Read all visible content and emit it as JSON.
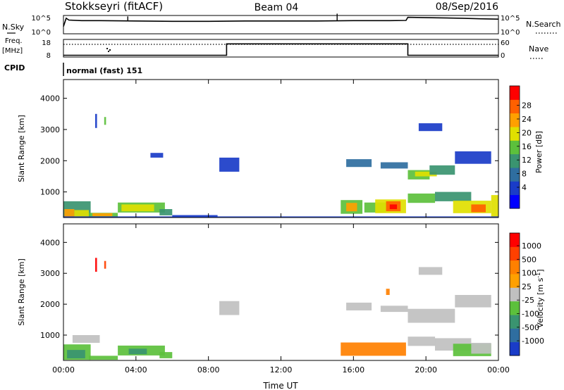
{
  "header": {
    "station": "Stokkseyri (fitACF)",
    "beam": "Beam 04",
    "date": "08/Sep/2016"
  },
  "top_panels": {
    "nsky": {
      "left_label": "N.Sky",
      "left_ticks": [
        "10^5",
        "10^0"
      ],
      "right_ticks": [
        "10^5",
        "10^0"
      ],
      "right_label": "N.Search",
      "series": [
        {
          "style": "solid",
          "x": [
            0.0,
            0.15,
            0.3,
            1.0,
            2.0,
            4.0,
            6.0,
            8.0,
            10.0,
            12.0,
            14.0,
            16.0,
            17.0,
            18.0,
            18.9,
            19.0,
            20.0,
            22.0,
            23.0,
            24.0
          ],
          "y": [
            0.4,
            0.85,
            0.75,
            0.72,
            0.72,
            0.7,
            0.68,
            0.68,
            0.7,
            0.7,
            0.7,
            0.72,
            0.72,
            0.72,
            0.73,
            0.9,
            0.88,
            0.85,
            0.82,
            0.8
          ]
        },
        {
          "style": "dotted",
          "x": [],
          "y": []
        }
      ],
      "spikes": [
        {
          "x": 3.55,
          "y": 0.95
        },
        {
          "x": 15.1,
          "y": 1.1
        }
      ]
    },
    "freq": {
      "left_label": "Freq.",
      "left_unit": "[MHz]",
      "left_ticks": [
        "18",
        "8"
      ],
      "right_ticks": [
        "60",
        "0"
      ],
      "right_label": "Nave",
      "series": [
        {
          "style": "solid",
          "x": [
            0.0,
            9.0,
            9.0,
            19.0,
            19.0,
            24.0
          ],
          "y": [
            0.1,
            0.1,
            0.75,
            0.75,
            0.1,
            0.1
          ]
        },
        {
          "style": "dotted",
          "x": [
            0.0,
            24.0
          ],
          "y": [
            0.72,
            0.72
          ]
        }
      ]
    },
    "cpid": {
      "label": "CPID",
      "value": "normal (fast) 151"
    }
  },
  "chart_data": [
    {
      "type": "heatmap",
      "title": "",
      "xlabel": "Time UT",
      "ylabel": "Slant Range [km]",
      "x_range": [
        0,
        24
      ],
      "ylim": [
        180,
        4600
      ],
      "x_ticks": [
        "00:00",
        "04:00",
        "08:00",
        "12:00",
        "16:00",
        "20:00",
        "00:00"
      ],
      "y_ticks": [
        1000,
        2000,
        3000,
        4000
      ],
      "colorbar": {
        "label": "Power [dB]",
        "ticks": [
          "4",
          "8",
          "12",
          "16",
          "20",
          "24",
          "28"
        ],
        "colors": [
          "#0000ff",
          "#1a3cc8",
          "#2f6ea0",
          "#3a9470",
          "#5cc03c",
          "#e0e000",
          "#ffa000",
          "#ff6000",
          "#ff0000"
        ]
      },
      "patches": [
        {
          "t": [
            0.0,
            1.5
          ],
          "r": [
            200,
            700
          ],
          "v": 3
        },
        {
          "t": [
            0.05,
            0.6
          ],
          "r": [
            200,
            450
          ],
          "v": 6
        },
        {
          "t": [
            0.6,
            1.4
          ],
          "r": [
            210,
            420
          ],
          "v": 5
        },
        {
          "t": [
            1.4,
            3.0
          ],
          "r": [
            200,
            330
          ],
          "v": 4
        },
        {
          "t": [
            1.6,
            2.7
          ],
          "r": [
            220,
            320
          ],
          "v": 6
        },
        {
          "t": [
            3.0,
            5.6
          ],
          "r": [
            340,
            660
          ],
          "v": 4
        },
        {
          "t": [
            3.2,
            5.0
          ],
          "r": [
            380,
            600
          ],
          "v": 5
        },
        {
          "t": [
            5.3,
            6.0
          ],
          "r": [
            250,
            450
          ],
          "v": 3
        },
        {
          "t": [
            6.0,
            8.5
          ],
          "r": [
            200,
            260
          ],
          "v": 1
        },
        {
          "t": [
            15.3,
            16.5
          ],
          "r": [
            300,
            740
          ],
          "v": 4
        },
        {
          "t": [
            15.6,
            16.2
          ],
          "r": [
            380,
            650
          ],
          "v": 6
        },
        {
          "t": [
            16.6,
            17.8
          ],
          "r": [
            340,
            660
          ],
          "v": 4
        },
        {
          "t": [
            17.2,
            18.9
          ],
          "r": [
            320,
            760
          ],
          "v": 5
        },
        {
          "t": [
            17.8,
            18.6
          ],
          "r": [
            380,
            700
          ],
          "v": 7
        },
        {
          "t": [
            18.0,
            18.4
          ],
          "r": [
            450,
            600
          ],
          "v": 8
        },
        {
          "t": [
            19.0,
            20.5
          ],
          "r": [
            650,
            950
          ],
          "v": 4
        },
        {
          "t": [
            20.5,
            22.5
          ],
          "r": [
            700,
            1000
          ],
          "v": 3
        },
        {
          "t": [
            21.5,
            23.6
          ],
          "r": [
            320,
            720
          ],
          "v": 5
        },
        {
          "t": [
            22.5,
            23.3
          ],
          "r": [
            350,
            600
          ],
          "v": 7
        },
        {
          "t": [
            23.6,
            24.0
          ],
          "r": [
            200,
            900
          ],
          "v": 5
        },
        {
          "t": [
            19.0,
            20.2
          ],
          "r": [
            1400,
            1700
          ],
          "v": 4
        },
        {
          "t": [
            19.4,
            20.6
          ],
          "r": [
            1500,
            1650
          ],
          "v": 5
        },
        {
          "t": [
            20.2,
            21.6
          ],
          "r": [
            1550,
            1850
          ],
          "v": 3
        },
        {
          "t": [
            15.6,
            17.0
          ],
          "r": [
            1800,
            2050
          ],
          "v": 2
        },
        {
          "t": [
            17.5,
            19.0
          ],
          "r": [
            1750,
            1950
          ],
          "v": 2
        },
        {
          "t": [
            21.6,
            23.6
          ],
          "r": [
            1900,
            2300
          ],
          "v": 1
        },
        {
          "t": [
            19.6,
            20.9
          ],
          "r": [
            2950,
            3200
          ],
          "v": 1
        },
        {
          "t": [
            8.6,
            9.7
          ],
          "r": [
            1650,
            2100
          ],
          "v": 1
        },
        {
          "t": [
            4.8,
            5.5
          ],
          "r": [
            2100,
            2250
          ],
          "v": 1
        },
        {
          "t": [
            1.75,
            1.85
          ],
          "r": [
            3050,
            3500
          ],
          "v": 1
        },
        {
          "t": [
            2.25,
            2.35
          ],
          "r": [
            3150,
            3400
          ],
          "v": 4
        },
        {
          "t": [
            0.0,
            24.0
          ],
          "r": [
            190,
            215
          ],
          "v": 1
        }
      ]
    },
    {
      "type": "heatmap",
      "title": "",
      "xlabel": "Time UT",
      "ylabel": "Slant Range [km]",
      "x_range": [
        0,
        24
      ],
      "ylim": [
        180,
        4600
      ],
      "x_ticks": [
        "00:00",
        "04:00",
        "08:00",
        "12:00",
        "16:00",
        "20:00",
        "00:00"
      ],
      "y_ticks": [
        1000,
        2000,
        3000,
        4000
      ],
      "colorbar": {
        "label": "Velocity [m s-1]",
        "ticks": [
          "1000",
          "500",
          "100",
          "25",
          "-25",
          "-100",
          "-500",
          "-1000"
        ],
        "colors": [
          "#1a3cc8",
          "#2f6ea0",
          "#3a9470",
          "#5cc03c",
          "#c0c0c0",
          "#ffa000",
          "#ff8000",
          "#ff4000",
          "#ff0000"
        ]
      },
      "patches": [
        {
          "t": [
            0.0,
            1.5
          ],
          "r": [
            200,
            700
          ],
          "v": 3
        },
        {
          "t": [
            0.2,
            1.2
          ],
          "r": [
            250,
            520
          ],
          "v": 2
        },
        {
          "t": [
            1.4,
            3.0
          ],
          "r": [
            200,
            330
          ],
          "v": 3
        },
        {
          "t": [
            3.0,
            5.6
          ],
          "r": [
            340,
            660
          ],
          "v": 3
        },
        {
          "t": [
            3.6,
            4.6
          ],
          "r": [
            380,
            560
          ],
          "v": 2
        },
        {
          "t": [
            5.3,
            6.0
          ],
          "r": [
            250,
            450
          ],
          "v": 3
        },
        {
          "t": [
            0.5,
            2.0
          ],
          "r": [
            750,
            1000
          ],
          "v": 4
        },
        {
          "t": [
            15.3,
            18.9
          ],
          "r": [
            330,
            760
          ],
          "v": 6
        },
        {
          "t": [
            19.0,
            20.5
          ],
          "r": [
            650,
            950
          ],
          "v": 4
        },
        {
          "t": [
            20.5,
            22.5
          ],
          "r": [
            500,
            900
          ],
          "v": 4
        },
        {
          "t": [
            21.5,
            23.6
          ],
          "r": [
            320,
            720
          ],
          "v": 3
        },
        {
          "t": [
            22.5,
            23.6
          ],
          "r": [
            400,
            750
          ],
          "v": 4
        },
        {
          "t": [
            19.0,
            21.6
          ],
          "r": [
            1400,
            1850
          ],
          "v": 4
        },
        {
          "t": [
            15.6,
            17.0
          ],
          "r": [
            1800,
            2050
          ],
          "v": 4
        },
        {
          "t": [
            17.5,
            19.0
          ],
          "r": [
            1750,
            1950
          ],
          "v": 4
        },
        {
          "t": [
            21.6,
            23.6
          ],
          "r": [
            1900,
            2300
          ],
          "v": 4
        },
        {
          "t": [
            19.6,
            20.9
          ],
          "r": [
            2950,
            3200
          ],
          "v": 4
        },
        {
          "t": [
            8.6,
            9.7
          ],
          "r": [
            1650,
            2100
          ],
          "v": 4
        },
        {
          "t": [
            17.8,
            18.0
          ],
          "r": [
            2300,
            2500
          ],
          "v": 6
        },
        {
          "t": [
            1.75,
            1.85
          ],
          "r": [
            3050,
            3500
          ],
          "v": 8
        },
        {
          "t": [
            2.25,
            2.35
          ],
          "r": [
            3150,
            3400
          ],
          "v": 7
        }
      ]
    }
  ]
}
